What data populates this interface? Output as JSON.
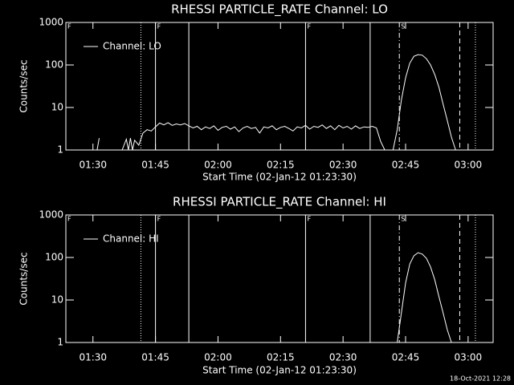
{
  "timestamp": "18-Oct-2021 12:28",
  "chart_data": [
    {
      "type": "line",
      "title": "RHESSI PARTICLE_RATE Channel: LO",
      "x_label": "Start Time (02-Jan-12 01:23:30)",
      "y_label": "Counts/sec",
      "log_y": true,
      "legend": "upper left",
      "xlim": [
        "01:23:30",
        "03:06:00"
      ],
      "ylim": [
        1,
        1000
      ],
      "xticks": [
        "01:30",
        "01:45",
        "02:00",
        "02:15",
        "02:30",
        "02:45",
        "03:00"
      ],
      "yticks": [
        1,
        10,
        100,
        1000
      ],
      "vlines": [
        {
          "x": "01:41:30",
          "style": "dotted"
        },
        {
          "x": "01:45:00",
          "style": "solid"
        },
        {
          "x": "01:53:00",
          "style": "solid"
        },
        {
          "x": "02:21:00",
          "style": "solid"
        },
        {
          "x": "02:36:30",
          "style": "solid"
        },
        {
          "x": "02:43:30",
          "style": "dashdot"
        },
        {
          "x": "02:58:00",
          "style": "dashed"
        },
        {
          "x": "03:01:45",
          "style": "dotted"
        }
      ],
      "flags": [
        {
          "x": "01:23:30",
          "label": "F"
        },
        {
          "x": "01:45:00",
          "label": "F"
        },
        {
          "x": "02:21:00",
          "label": "F"
        },
        {
          "x": "02:43:30",
          "label": "S"
        }
      ],
      "series": [
        {
          "name": "Channel: LO",
          "color": "#ffffff",
          "x": [
            "01:31",
            "01:31:30",
            "01:32",
            "01:37",
            "01:38",
            "01:38:30",
            "01:39",
            "01:39:30",
            "01:40",
            "01:41",
            "01:42",
            "01:43",
            "01:44",
            "01:45",
            "01:46",
            "01:47",
            "01:48",
            "01:49",
            "01:50",
            "01:51",
            "01:52",
            "01:53",
            "01:54",
            "01:55",
            "01:56",
            "01:57",
            "01:58",
            "01:59",
            "02:00",
            "02:01",
            "02:02",
            "02:03",
            "02:04",
            "02:05",
            "02:06",
            "02:07",
            "02:08",
            "02:09",
            "02:10",
            "02:11",
            "02:12",
            "02:13",
            "02:14",
            "02:15",
            "02:16",
            "02:17",
            "02:18",
            "02:19",
            "02:20",
            "02:21",
            "02:22",
            "02:23",
            "02:24",
            "02:25",
            "02:26",
            "02:27",
            "02:28",
            "02:29",
            "02:30",
            "02:31",
            "02:32",
            "02:33",
            "02:34",
            "02:35",
            "02:36",
            "02:37",
            "02:38",
            "02:39",
            "02:40",
            "02:41",
            "02:42",
            "02:43",
            "02:44",
            "02:45",
            "02:46",
            "02:47",
            "02:48",
            "02:49",
            "02:50",
            "02:51",
            "02:52",
            "02:53",
            "02:54",
            "02:55",
            "02:56",
            "02:57"
          ],
          "values": [
            1,
            1.9,
            null,
            1,
            1.8,
            1,
            1.9,
            1,
            1.7,
            1.3,
            2.5,
            3.0,
            2.8,
            3.5,
            4.3,
            3.9,
            4.4,
            3.8,
            4.1,
            3.9,
            4.2,
            3.7,
            3.3,
            3.6,
            3.0,
            3.5,
            3.2,
            3.7,
            2.9,
            3.4,
            3.6,
            3.1,
            3.5,
            2.7,
            3.3,
            3.6,
            3.2,
            3.4,
            2.5,
            3.5,
            3.3,
            3.7,
            3.0,
            3.4,
            3.6,
            3.2,
            2.8,
            3.5,
            3.3,
            3.8,
            3.1,
            3.6,
            3.4,
            3.9,
            3.2,
            3.7,
            3.0,
            3.8,
            3.3,
            3.6,
            3.1,
            3.7,
            3.2,
            3.5,
            3.4,
            3.6,
            3.3,
            1.6,
            1,
            null,
            1,
            3,
            15,
            50,
            110,
            160,
            175,
            170,
            140,
            100,
            60,
            30,
            12,
            5,
            2,
            1
          ]
        }
      ]
    },
    {
      "type": "line",
      "title": "RHESSI PARTICLE_RATE Channel: HI",
      "x_label": "Start Time (02-Jan-12 01:23:30)",
      "y_label": "Counts/sec",
      "log_y": true,
      "legend": "upper left",
      "xlim": [
        "01:23:30",
        "03:06:00"
      ],
      "ylim": [
        1,
        1000
      ],
      "xticks": [
        "01:30",
        "01:45",
        "02:00",
        "02:15",
        "02:30",
        "02:45",
        "03:00"
      ],
      "yticks": [
        1,
        10,
        100,
        1000
      ],
      "vlines": [
        {
          "x": "01:41:30",
          "style": "dotted"
        },
        {
          "x": "01:45:00",
          "style": "solid"
        },
        {
          "x": "01:53:00",
          "style": "solid"
        },
        {
          "x": "02:21:00",
          "style": "solid"
        },
        {
          "x": "02:36:30",
          "style": "solid"
        },
        {
          "x": "02:43:30",
          "style": "dashdot"
        },
        {
          "x": "02:58:00",
          "style": "dashed"
        },
        {
          "x": "03:01:45",
          "style": "dotted"
        }
      ],
      "flags": [
        {
          "x": "01:23:30",
          "label": "F"
        },
        {
          "x": "01:45:00",
          "label": "F"
        },
        {
          "x": "02:21:00",
          "label": "F"
        },
        {
          "x": "02:43:30",
          "label": "S"
        }
      ],
      "series": [
        {
          "name": "Channel: HI",
          "color": "#ffffff",
          "x": [
            "02:43",
            "02:44",
            "02:45",
            "02:46",
            "02:47",
            "02:48",
            "02:49",
            "02:50",
            "02:51",
            "02:52",
            "02:53",
            "02:54",
            "02:55",
            "02:56"
          ],
          "values": [
            1,
            5,
            25,
            70,
            110,
            130,
            120,
            95,
            60,
            30,
            12,
            5,
            2,
            1
          ]
        }
      ]
    }
  ]
}
